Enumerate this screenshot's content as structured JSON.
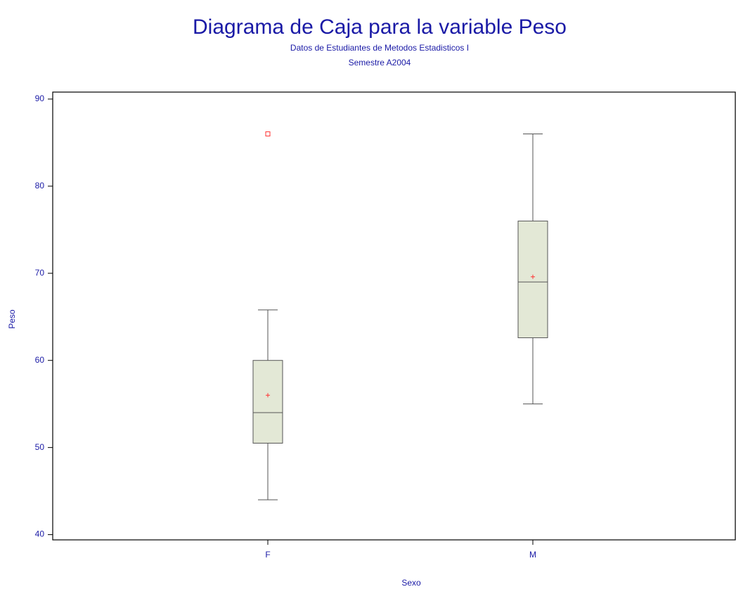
{
  "chart_data": {
    "type": "box",
    "title": "Diagrama de Caja para la variable Peso",
    "subtitle": [
      "Datos de Estudiantes de Metodos Estadisticos I",
      "Semestre A2004"
    ],
    "x_label": "Sexo",
    "y_label": "Peso",
    "categories": [
      "F",
      "M"
    ],
    "boxes": [
      {
        "whisker_low": 44,
        "q1": 50.5,
        "median": 54,
        "q3": 60,
        "whisker_high": 65.8,
        "mean": 56,
        "outliers": [
          86
        ]
      },
      {
        "whisker_low": 55,
        "q1": 62.6,
        "median": 69,
        "q3": 76,
        "whisker_high": 86,
        "mean": 69.6,
        "outliers": []
      }
    ],
    "box_color": "#e3e8d6",
    "line_color": "#555555",
    "marker_color": "#ff3333",
    "ylim": [
      39.4,
      90.8
    ],
    "yticks": [
      40,
      50,
      60,
      70,
      80,
      90
    ]
  }
}
